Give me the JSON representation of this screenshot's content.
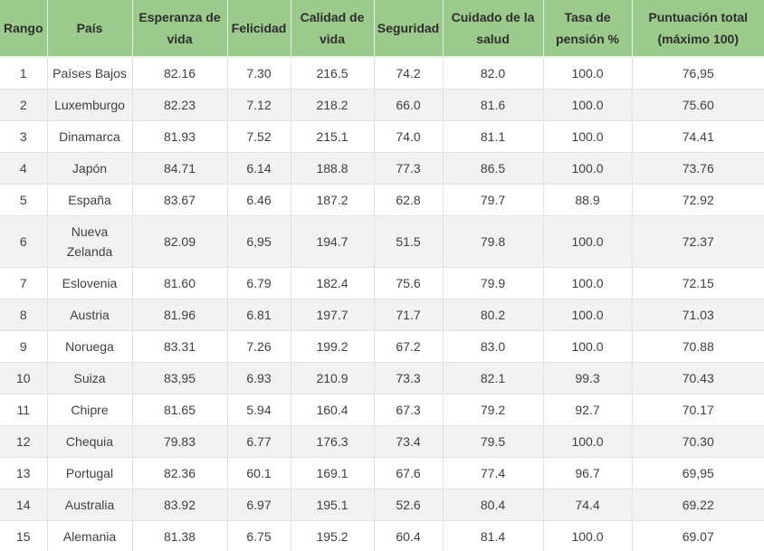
{
  "chart_data": {
    "type": "table",
    "columns": [
      "Rango",
      "País",
      "Esperanza de vida",
      "Felicidad",
      "Calidad de vida",
      "Seguridad",
      "Cuidado de la salud",
      "Tasa de pensión %",
      "Puntuación total (máximo 100)"
    ],
    "rows": [
      [
        "1",
        "Países Bajos",
        "82.16",
        "7.30",
        "216.5",
        "74.2",
        "82.0",
        "100.0",
        "76,95"
      ],
      [
        "2",
        "Luxemburgo",
        "82.23",
        "7.12",
        "218.2",
        "66.0",
        "81.6",
        "100.0",
        "75.60"
      ],
      [
        "3",
        "Dinamarca",
        "81.93",
        "7.52",
        "215.1",
        "74.0",
        "81.1",
        "100.0",
        "74.41"
      ],
      [
        "4",
        "Japón",
        "84.71",
        "6.14",
        "188.8",
        "77.3",
        "86.5",
        "100.0",
        "73.76"
      ],
      [
        "5",
        "España",
        "83.67",
        "6.46",
        "187.2",
        "62.8",
        "79.7",
        "88.9",
        "72.92"
      ],
      [
        "6",
        "Nueva Zelanda",
        "82.09",
        "6,95",
        "194.7",
        "51.5",
        "79.8",
        "100.0",
        "72.37"
      ],
      [
        "7",
        "Eslovenia",
        "81.60",
        "6.79",
        "182.4",
        "75.6",
        "79.9",
        "100.0",
        "72.15"
      ],
      [
        "8",
        "Austria",
        "81.96",
        "6.81",
        "197.7",
        "71.7",
        "80.2",
        "100.0",
        "71.03"
      ],
      [
        "9",
        "Noruega",
        "83.31",
        "7.26",
        "199.2",
        "67.2",
        "83.0",
        "100.0",
        "70.88"
      ],
      [
        "10",
        "Suiza",
        "83,95",
        "6.93",
        "210.9",
        "73.3",
        "82.1",
        "99.3",
        "70.43"
      ],
      [
        "11",
        "Chipre",
        "81.65",
        "5.94",
        "160.4",
        "67.3",
        "79.2",
        "92.7",
        "70.17"
      ],
      [
        "12",
        "Chequia",
        "79.83",
        "6.77",
        "176.3",
        "73.4",
        "79.5",
        "100.0",
        "70.30"
      ],
      [
        "13",
        "Portugal",
        "82.36",
        "60.1",
        "169.1",
        "67.6",
        "77.4",
        "96.7",
        "69,95"
      ],
      [
        "14",
        "Australia",
        "83.92",
        "6.97",
        "195.1",
        "52.6",
        "80.4",
        "74.4",
        "69.22"
      ],
      [
        "15",
        "Alemania",
        "81.38",
        "6.75",
        "195.2",
        "60.4",
        "81.4",
        "100.0",
        "69.07"
      ]
    ]
  },
  "colors": {
    "header_bg": "#9cc98c",
    "header_text": "#2e2e2e",
    "header_divider": "#e8efe2",
    "header_bottom_border": "#f0f0f0",
    "body_text": "#404040",
    "row_odd_bg": "#ffffff",
    "row_even_bg": "#f2f2f2",
    "grid_line": "#e2e2e2"
  }
}
